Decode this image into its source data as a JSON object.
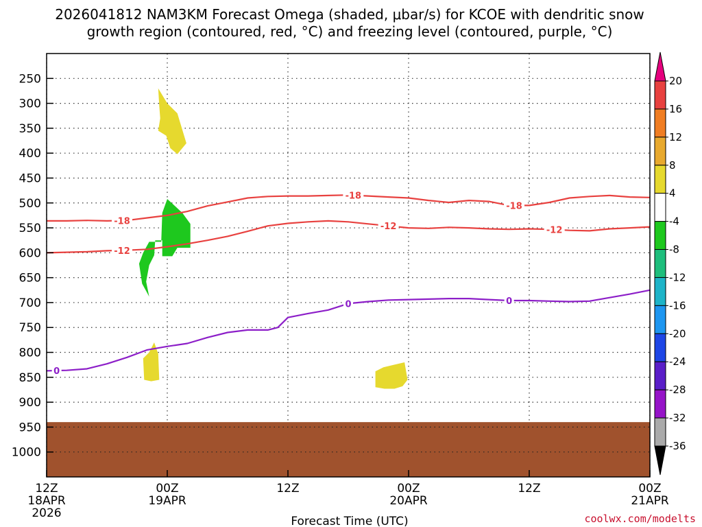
{
  "chart_data": {
    "type": "time-height cross section",
    "title_line1": "2026041812 NAM3KM Forecast Omega (shaded, μbar/s) for KCOE with dendritic snow",
    "title_line2": "growth region (contoured, red, °C) and freezing level (contoured, purple, °C)",
    "xlabel": "Forecast Time (UTC)",
    "credit": "coolwx.com/modelts",
    "x_range_hours": [
      0,
      60
    ],
    "y_range_hpa": [
      200,
      1050
    ],
    "x_ticks": [
      {
        "h": 0,
        "l1": "12Z",
        "l2": "18APR",
        "l3": "2026"
      },
      {
        "h": 12,
        "l1": "00Z",
        "l2": "19APR",
        "l3": ""
      },
      {
        "h": 24,
        "l1": "12Z",
        "l2": "",
        "l3": ""
      },
      {
        "h": 36,
        "l1": "00Z",
        "l2": "20APR",
        "l3": ""
      },
      {
        "h": 48,
        "l1": "12Z",
        "l2": "",
        "l3": ""
      },
      {
        "h": 60,
        "l1": "00Z",
        "l2": "21APR",
        "l3": ""
      }
    ],
    "y_ticks": [
      250,
      300,
      350,
      400,
      450,
      500,
      550,
      600,
      650,
      700,
      750,
      800,
      850,
      900,
      950,
      1000
    ],
    "ground": {
      "pressure_hpa": 940,
      "color": "#a0522d"
    },
    "contours": [
      {
        "name": "isotherm-minus18",
        "label": "-18",
        "color": "#e8413f",
        "label_hours": [
          7.5,
          30.5,
          46.5
        ],
        "points": [
          [
            0,
            536
          ],
          [
            2,
            536
          ],
          [
            4,
            535
          ],
          [
            6,
            536
          ],
          [
            8,
            535
          ],
          [
            10,
            530
          ],
          [
            12,
            525
          ],
          [
            14,
            517
          ],
          [
            16,
            506
          ],
          [
            18,
            498
          ],
          [
            20,
            490
          ],
          [
            22,
            487
          ],
          [
            24,
            486
          ],
          [
            26,
            486
          ],
          [
            28,
            485
          ],
          [
            30,
            484
          ],
          [
            32,
            486
          ],
          [
            34,
            488
          ],
          [
            36,
            490
          ],
          [
            38,
            495
          ],
          [
            40,
            499
          ],
          [
            42,
            495
          ],
          [
            44,
            497
          ],
          [
            46,
            505
          ],
          [
            48,
            505
          ],
          [
            50,
            499
          ],
          [
            52,
            490
          ],
          [
            54,
            487
          ],
          [
            56,
            485
          ],
          [
            58,
            488
          ],
          [
            60,
            489
          ]
        ]
      },
      {
        "name": "isotherm-minus12",
        "label": "-12",
        "color": "#e8413f",
        "label_hours": [
          7.5,
          34,
          50.5
        ],
        "points": [
          [
            0,
            600
          ],
          [
            2,
            599
          ],
          [
            4,
            598
          ],
          [
            6,
            596
          ],
          [
            8,
            595
          ],
          [
            10,
            593
          ],
          [
            12,
            588
          ],
          [
            14,
            582
          ],
          [
            16,
            575
          ],
          [
            18,
            567
          ],
          [
            20,
            557
          ],
          [
            22,
            546
          ],
          [
            24,
            541
          ],
          [
            26,
            538
          ],
          [
            28,
            536
          ],
          [
            30,
            538
          ],
          [
            32,
            542
          ],
          [
            34,
            546
          ],
          [
            36,
            550
          ],
          [
            38,
            551
          ],
          [
            40,
            549
          ],
          [
            42,
            550
          ],
          [
            44,
            552
          ],
          [
            46,
            553
          ],
          [
            48,
            552
          ],
          [
            50,
            553
          ],
          [
            52,
            555
          ],
          [
            54,
            556
          ],
          [
            56,
            552
          ],
          [
            58,
            550
          ],
          [
            60,
            548
          ]
        ]
      },
      {
        "name": "freezing-level-0c",
        "label": "0",
        "color": "#8c1ec8",
        "label_hours": [
          1,
          30,
          46
        ],
        "points": [
          [
            0,
            837
          ],
          [
            2,
            836
          ],
          [
            4,
            833
          ],
          [
            6,
            823
          ],
          [
            8,
            810
          ],
          [
            10,
            795
          ],
          [
            12,
            788
          ],
          [
            14,
            782
          ],
          [
            16,
            770
          ],
          [
            18,
            760
          ],
          [
            20,
            755
          ],
          [
            22,
            755
          ],
          [
            23,
            750
          ],
          [
            24,
            730
          ],
          [
            26,
            722
          ],
          [
            28,
            715
          ],
          [
            30,
            702
          ],
          [
            32,
            698
          ],
          [
            34,
            695
          ],
          [
            36,
            694
          ],
          [
            38,
            693
          ],
          [
            40,
            692
          ],
          [
            42,
            692
          ],
          [
            44,
            694
          ],
          [
            46,
            696
          ],
          [
            48,
            696
          ],
          [
            50,
            697
          ],
          [
            52,
            698
          ],
          [
            54,
            697
          ],
          [
            56,
            690
          ],
          [
            58,
            683
          ],
          [
            60,
            675
          ]
        ]
      }
    ],
    "omega_regions": [
      {
        "name": "omega-upward-4-to-8-upper",
        "color": "#e6d92e",
        "points": [
          [
            11.1,
            355
          ],
          [
            11.3,
            330
          ],
          [
            11.2,
            305
          ],
          [
            11.1,
            270
          ],
          [
            12,
            300
          ],
          [
            13,
            320
          ],
          [
            13.9,
            380
          ],
          [
            13,
            402
          ],
          [
            12.3,
            390
          ],
          [
            11.9,
            365
          ]
        ]
      },
      {
        "name": "omega-upward-minus4-to-minus8",
        "color": "#1ec81e",
        "points": [
          [
            11.5,
            520
          ],
          [
            12,
            492
          ],
          [
            12.7,
            505
          ],
          [
            13.5,
            520
          ],
          [
            14.3,
            542
          ],
          [
            14.3,
            590
          ],
          [
            13,
            590
          ],
          [
            12.5,
            607
          ],
          [
            11.5,
            607
          ],
          [
            11.5,
            575
          ],
          [
            10.8,
            575
          ],
          [
            10.7,
            605
          ],
          [
            10.2,
            625
          ],
          [
            9.9,
            658
          ],
          [
            10.2,
            688
          ],
          [
            9.5,
            662
          ],
          [
            9.2,
            622
          ],
          [
            9.6,
            600
          ],
          [
            10.2,
            578
          ],
          [
            11.4,
            578
          ]
        ]
      },
      {
        "name": "omega-upward-4-to-8-low-left",
        "color": "#e6d92e",
        "points": [
          [
            9.6,
            812
          ],
          [
            10.2,
            800
          ],
          [
            10.7,
            780
          ],
          [
            11.1,
            803
          ],
          [
            11.2,
            855
          ],
          [
            10.4,
            858
          ],
          [
            9.7,
            855
          ]
        ]
      },
      {
        "name": "omega-upward-4-to-8-low-right",
        "color": "#e6d92e",
        "points": [
          [
            32.7,
            838
          ],
          [
            33.5,
            830
          ],
          [
            34.5,
            825
          ],
          [
            35.6,
            820
          ],
          [
            35.9,
            855
          ],
          [
            35.4,
            868
          ],
          [
            34.6,
            873
          ],
          [
            33.6,
            873
          ],
          [
            32.7,
            870
          ]
        ]
      }
    ],
    "colorbar": {
      "top_arrow_color": "#e6007e",
      "bottom_arrow_color": "#000000",
      "boxes": [
        "#e8413f",
        "#f07d22",
        "#e8a92e",
        "#e6d92e",
        "#ffffff",
        "#1ec81e",
        "#1ebe7c",
        "#1eb4c8",
        "#1e96f0",
        "#1e46e6",
        "#5a1ec8",
        "#9614c8",
        "#aaaaaa"
      ],
      "labels": [
        "20",
        "16",
        "12",
        "8",
        "4",
        "-4",
        "-8",
        "-12",
        "-16",
        "-20",
        "-24",
        "-28",
        "-32",
        "-36"
      ]
    }
  }
}
